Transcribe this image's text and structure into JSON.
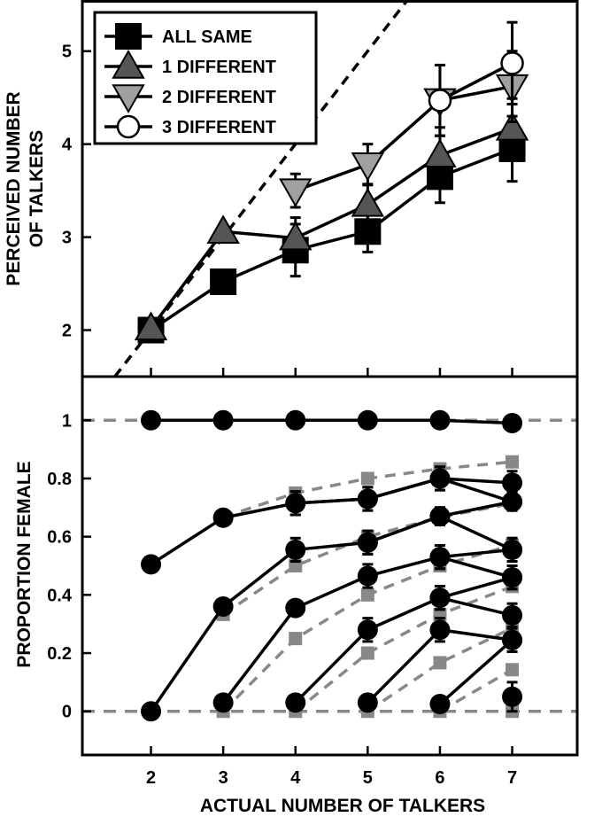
{
  "chart_data": [
    {
      "type": "line",
      "panel": "top",
      "ylabel_lines": [
        "PERCEIVED NUMBER",
        "OF TALKERS"
      ],
      "xlim": [
        1.05,
        7.9
      ],
      "ylim": [
        1.5,
        5.55
      ],
      "yticks": [
        2,
        3,
        4,
        5
      ],
      "legend": {
        "placement": "top-left"
      },
      "reference_line": {
        "style": "dashed",
        "points": [
          [
            1.5,
            1.5
          ],
          [
            5.55,
            5.55
          ]
        ]
      },
      "series": [
        {
          "name": "ALL SAME",
          "marker": "square",
          "fill": "#000000",
          "x": [
            2,
            3,
            4,
            5,
            6,
            7
          ],
          "y": [
            2.0,
            2.52,
            2.86,
            3.06,
            3.65,
            3.95
          ],
          "err": [
            0.04,
            0.1,
            0.28,
            0.22,
            0.28,
            0.35
          ]
        },
        {
          "name": "1 DIFFERENT",
          "marker": "triangle-up",
          "fill": "#555555",
          "x": [
            2,
            3,
            4,
            5,
            6,
            7
          ],
          "y": [
            2.02,
            3.06,
            2.99,
            3.35,
            3.88,
            4.17
          ],
          "err": [
            0.04,
            0.06,
            0.22,
            0.22,
            0.3,
            0.32
          ]
        },
        {
          "name": "2 DIFFERENT",
          "marker": "triangle-down",
          "fill": "#a0a0a0",
          "x": [
            4,
            5,
            6,
            7
          ],
          "y": [
            3.5,
            3.78,
            4.47,
            4.62
          ],
          "err": [
            0.18,
            0.22,
            0.38,
            0.38
          ]
        },
        {
          "name": "3 DIFFERENT",
          "marker": "circle",
          "fill": "#ffffff",
          "x": [
            6,
            7
          ],
          "y": [
            4.47,
            4.87
          ],
          "err": [
            0.38,
            0.44
          ]
        }
      ]
    },
    {
      "type": "line",
      "panel": "bottom",
      "xlabel": "ACTUAL NUMBER OF TALKERS",
      "ylabel": "PROPORTION FEMALE",
      "xlim": [
        1.05,
        7.9
      ],
      "ylim": [
        -0.15,
        1.15
      ],
      "xticks": [
        2,
        3,
        4,
        5,
        6,
        7
      ],
      "yticks": [
        0,
        0.2,
        0.4,
        0.6,
        0.8,
        1
      ],
      "ytick_labels": [
        "0",
        "0.2",
        "0.4",
        "0.6",
        "0.8",
        "1"
      ],
      "reference_lines": [
        0,
        1
      ],
      "observed": [
        {
          "x": [
            2,
            3,
            4,
            5,
            6,
            7
          ],
          "y": [
            1.0,
            1.0,
            1.0,
            1.0,
            1.0,
            0.99
          ],
          "err": [
            0,
            0,
            0,
            0,
            0,
            0
          ]
        },
        {
          "x": [
            4,
            5,
            6,
            7
          ],
          "y": [
            0.715,
            0.73,
            0.8,
            0.785
          ],
          "err": [
            0.04,
            0.04,
            0.04,
            0.04
          ]
        },
        {
          "x": [
            2,
            3,
            4,
            5,
            6,
            7
          ],
          "y": [
            0.505,
            0.665,
            0.715,
            0.73,
            0.8,
            0.72
          ],
          "err": [
            0,
            0,
            0.04,
            0.04,
            0.04,
            0.03
          ]
        },
        {
          "x": [
            5,
            6,
            7
          ],
          "y": [
            0.58,
            0.67,
            0.72
          ],
          "err": [
            0.04,
            0.03,
            0.03
          ]
        },
        {
          "x": [
            2,
            3,
            4,
            5,
            6,
            7
          ],
          "y": [
            0.0,
            0.36,
            0.555,
            0.58,
            0.67,
            0.555
          ],
          "err": [
            0,
            0,
            0.04,
            0.04,
            0.03,
            0.04
          ]
        },
        {
          "x": [
            6,
            7
          ],
          "y": [
            0.53,
            0.555
          ],
          "err": [
            0.04,
            0.04
          ]
        },
        {
          "x": [
            3,
            4,
            5,
            6,
            7
          ],
          "y": [
            0.03,
            0.355,
            0.465,
            0.53,
            0.46
          ],
          "err": [
            0.02,
            0.02,
            0.04,
            0.04,
            0.04
          ]
        },
        {
          "x": [
            6,
            7
          ],
          "y": [
            0.39,
            0.46
          ],
          "err": [
            0.04,
            0.04
          ]
        },
        {
          "x": [
            4,
            5,
            6,
            7
          ],
          "y": [
            0.03,
            0.28,
            0.39,
            0.33
          ],
          "err": [
            0.02,
            0.04,
            0.04,
            0.04
          ]
        },
        {
          "x": [
            5,
            6,
            7
          ],
          "y": [
            0.03,
            0.28,
            0.245
          ],
          "err": [
            0.02,
            0.04,
            0.04
          ]
        },
        {
          "x": [
            6,
            7
          ],
          "y": [
            0.025,
            0.245
          ],
          "err": [
            0.02,
            0.04
          ]
        },
        {
          "x": [
            7
          ],
          "y": [
            0.05
          ],
          "err": [
            0.05
          ]
        }
      ],
      "predicted": [
        {
          "x": [
            3,
            4,
            5,
            6,
            7
          ],
          "y": [
            0.667,
            0.75,
            0.8,
            0.833,
            0.857
          ]
        },
        {
          "x": [
            3,
            4,
            5,
            6,
            7
          ],
          "y": [
            0.333,
            0.5,
            0.6,
            0.667,
            0.714
          ]
        },
        {
          "x": [
            3,
            4,
            5,
            6,
            7
          ],
          "y": [
            0.0,
            0.25,
            0.4,
            0.5,
            0.571
          ]
        },
        {
          "x": [
            4,
            5,
            6,
            7
          ],
          "y": [
            0.0,
            0.2,
            0.333,
            0.429
          ]
        },
        {
          "x": [
            5,
            6,
            7
          ],
          "y": [
            0.0,
            0.167,
            0.286
          ]
        },
        {
          "x": [
            6,
            7
          ],
          "y": [
            0.0,
            0.143
          ]
        },
        {
          "x": [
            7
          ],
          "y": [
            0.0
          ]
        }
      ]
    }
  ]
}
